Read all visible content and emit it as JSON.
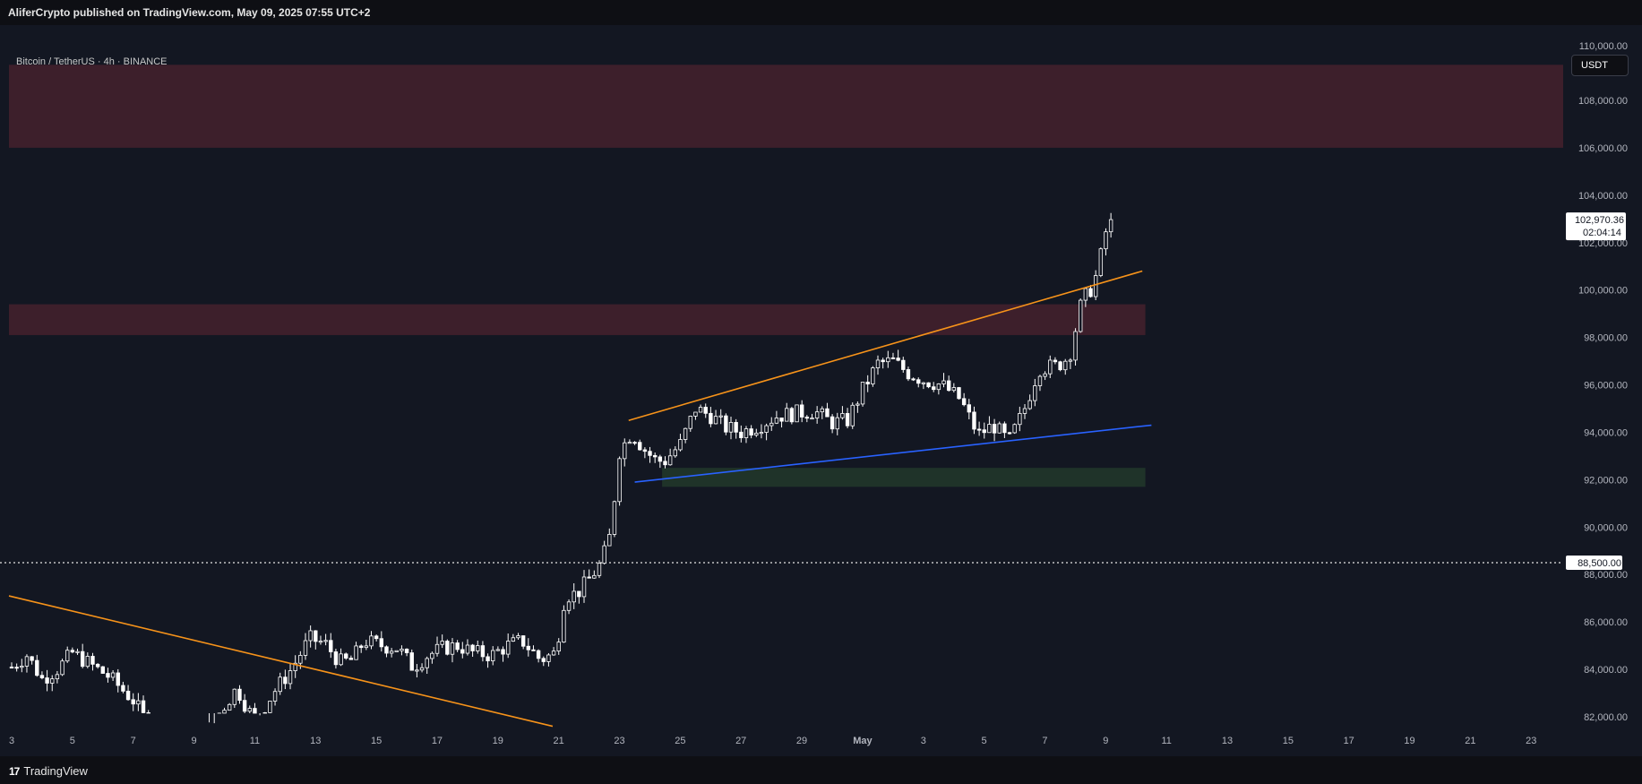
{
  "header": {
    "published_by": "AliferCrypto published on TradingView.com, May 09, 2025 07:55 UTC+2"
  },
  "symbol_label": "Bitcoin / TetherUS · 4h · BINANCE",
  "currency_button": "USDT",
  "footer": {
    "brand": "TradingView",
    "brand_mark": "17"
  },
  "colors": {
    "background": "#131722",
    "candle": "#ffffff",
    "resistance_zone": "#3d1f2b",
    "support_zone": "#1f3329",
    "orange_line": "#f7931a",
    "blue_line": "#2962ff"
  },
  "chart_data": {
    "type": "candlestick",
    "x_axis_ticks": [
      "3",
      "5",
      "7",
      "9",
      "11",
      "13",
      "15",
      "17",
      "19",
      "21",
      "23",
      "25",
      "27",
      "29",
      "May",
      "3",
      "5",
      "7",
      "9",
      "11",
      "13",
      "15",
      "17",
      "19",
      "21",
      "23"
    ],
    "y_axis_ticks": [
      "108,000.00",
      "106,000.00",
      "104,000.00",
      "102,000.00",
      "100,000.00",
      "98,000.00",
      "96,000.00",
      "94,000.00",
      "92,000.00",
      "90,000.00",
      "88,000.00",
      "86,000.00",
      "84,000.00",
      "82,000.00"
    ],
    "y_top_partial_label": "110,000.00",
    "ylim": [
      81600,
      110200
    ],
    "last_price": "102,970.36",
    "countdown": "02:04:14",
    "horizontal_level": {
      "value": 88500,
      "label": "88,500.00"
    },
    "zones": [
      {
        "kind": "resistance",
        "from": 106000,
        "to": 109500,
        "x_from_day": 3,
        "x_to_day": 54
      },
      {
        "kind": "resistance",
        "from": 98100,
        "to": 99400,
        "x_from_day": 3,
        "x_to_day": 40.3
      },
      {
        "kind": "support",
        "from": 91700,
        "to": 92500,
        "x_from_day": 24.4,
        "x_to_day": 40.3
      }
    ],
    "trendlines": [
      {
        "color": "orange",
        "p1": {
          "day": 3,
          "value": 87100
        },
        "p2": {
          "day": 20.8,
          "value": 81600
        }
      },
      {
        "color": "orange",
        "p1": {
          "day": 23.3,
          "value": 94500
        },
        "p2": {
          "day": 40.2,
          "value": 100800
        }
      },
      {
        "color": "blue",
        "p1": {
          "day": 23.5,
          "value": 91900
        },
        "p2": {
          "day": 40.5,
          "value": 94300
        }
      }
    ],
    "price_path": [
      [
        3.0,
        84100
      ],
      [
        3.5,
        84600
      ],
      [
        4.0,
        83600
      ],
      [
        4.5,
        84000
      ],
      [
        5.0,
        84700
      ],
      [
        5.6,
        84200
      ],
      [
        6.2,
        83700
      ],
      [
        7.0,
        82700
      ],
      [
        8.0,
        80600
      ],
      [
        9.0,
        79800
      ],
      [
        9.8,
        82100
      ],
      [
        10.4,
        83200
      ],
      [
        11.0,
        81800
      ],
      [
        11.6,
        83000
      ],
      [
        12.2,
        84000
      ],
      [
        12.8,
        85300
      ],
      [
        13.3,
        85100
      ],
      [
        13.8,
        84300
      ],
      [
        14.2,
        84400
      ],
      [
        14.6,
        85200
      ],
      [
        15.2,
        85000
      ],
      [
        15.7,
        84900
      ],
      [
        16.2,
        84100
      ],
      [
        16.7,
        84600
      ],
      [
        17.2,
        84900
      ],
      [
        17.7,
        85000
      ],
      [
        18.2,
        84700
      ],
      [
        18.8,
        84600
      ],
      [
        19.3,
        85000
      ],
      [
        19.8,
        85200
      ],
      [
        20.4,
        84400
      ],
      [
        20.9,
        84700
      ],
      [
        21.2,
        87100
      ],
      [
        21.6,
        87200
      ],
      [
        22.0,
        87800
      ],
      [
        22.4,
        88500
      ],
      [
        22.7,
        89700
      ],
      [
        23.0,
        93200
      ],
      [
        23.4,
        94000
      ],
      [
        23.8,
        93300
      ],
      [
        24.2,
        92800
      ],
      [
        24.5,
        92800
      ],
      [
        25.0,
        93500
      ],
      [
        25.5,
        95000
      ],
      [
        26.0,
        94700
      ],
      [
        26.5,
        94200
      ],
      [
        27.0,
        94000
      ],
      [
        27.6,
        94300
      ],
      [
        28.2,
        94700
      ],
      [
        28.8,
        94800
      ],
      [
        29.4,
        94900
      ],
      [
        30.0,
        94400
      ],
      [
        30.5,
        94500
      ],
      [
        31.0,
        95800
      ],
      [
        31.5,
        96900
      ],
      [
        32.0,
        97000
      ],
      [
        32.5,
        96500
      ],
      [
        33.0,
        96200
      ],
      [
        33.6,
        96000
      ],
      [
        34.2,
        95400
      ],
      [
        34.8,
        93900
      ],
      [
        35.3,
        94300
      ],
      [
        35.8,
        93600
      ],
      [
        36.3,
        94900
      ],
      [
        36.8,
        96700
      ],
      [
        37.4,
        96800
      ],
      [
        37.8,
        97200
      ],
      [
        38.2,
        99500
      ],
      [
        38.6,
        100200
      ],
      [
        38.9,
        101800
      ],
      [
        39.1,
        103100
      ],
      [
        39.3,
        102970
      ]
    ]
  }
}
